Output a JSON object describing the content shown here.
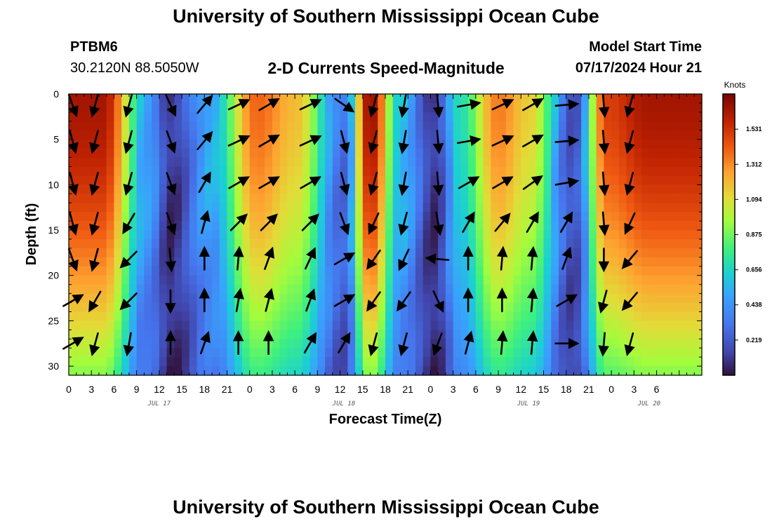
{
  "header": {
    "title": "University of Southern Mississippi Ocean Cube",
    "station": "PTBM6",
    "coords": "30.2120N  88.5050W",
    "plot_title": "2-D Currents Speed-Magnitude",
    "model_label": "Model Start Time",
    "model_time": "07/17/2024 Hour 21"
  },
  "footer": {
    "title": "University of Southern Mississippi Ocean Cube"
  },
  "chart_data": {
    "type": "heatmap",
    "title": "2-D Currents Speed-Magnitude",
    "xlabel": "Forecast Time(Z)",
    "ylabel": "Depth (ft)",
    "x_hours": [
      0,
      84
    ],
    "y_range": [
      0,
      31
    ],
    "x_tick_labels": [
      "0",
      "3",
      "6",
      "9",
      "12",
      "15",
      "18",
      "21",
      "0",
      "3",
      "6",
      "9",
      "12",
      "15",
      "18",
      "21",
      "0",
      "3",
      "6",
      "9",
      "12",
      "15",
      "18",
      "21",
      "0",
      "3",
      "6"
    ],
    "x_tick_hours": [
      0,
      3,
      6,
      9,
      12,
      15,
      18,
      21,
      24,
      27,
      30,
      33,
      36,
      39,
      42,
      45,
      48,
      51,
      54,
      57,
      60,
      63,
      66,
      69,
      72,
      75,
      78
    ],
    "day_labels": [
      {
        "label": "JUL 17",
        "hour": 12
      },
      {
        "label": "JUL 18",
        "hour": 36.5
      },
      {
        "label": "JUL 19",
        "hour": 61
      },
      {
        "label": "JUL 20",
        "hour": 77
      }
    ],
    "y_ticks": [
      0,
      5,
      10,
      15,
      20,
      25,
      30
    ],
    "colorbar": {
      "unit": "Knots",
      "range": [
        0.0,
        1.75
      ],
      "ticks": [
        "0.219",
        "0.438",
        "0.656",
        "0.875",
        "1.094",
        "1.312",
        "1.531"
      ],
      "tick_values": [
        0.219,
        0.438,
        0.656,
        0.875,
        1.094,
        1.312,
        1.531
      ]
    },
    "speed_peaks": [
      {
        "hour": 4.5,
        "speed": 1.65
      },
      {
        "hour": 10.5,
        "speed": 0.5
      },
      {
        "hour": 13.5,
        "speed": 0.1
      },
      {
        "hour": 19,
        "speed": 0.55
      },
      {
        "hour": 25,
        "speed": 1.4
      },
      {
        "hour": 30,
        "speed": 1.2
      },
      {
        "hour": 36.5,
        "speed": 0.3
      },
      {
        "hour": 40,
        "speed": 1.7
      },
      {
        "hour": 44,
        "speed": 0.6
      },
      {
        "hour": 48.5,
        "speed": 0.1
      },
      {
        "hour": 52,
        "speed": 0.7
      },
      {
        "hour": 57,
        "speed": 1.35
      },
      {
        "hour": 61,
        "speed": 1.15
      },
      {
        "hour": 67,
        "speed": 0.2
      },
      {
        "hour": 71.5,
        "speed": 1.5
      },
      {
        "hour": 77,
        "speed": 1.65
      }
    ],
    "arrows": {
      "depths_ft": [
        1.2,
        5.2,
        9.8,
        14.2,
        18.2,
        22.8,
        27.5
      ],
      "columns": [
        {
          "hour": 0.5,
          "dirs": [
            160,
            165,
            165,
            165,
            160,
            60,
            60
          ]
        },
        {
          "hour": 3.5,
          "dirs": [
            195,
            195,
            195,
            195,
            195,
            210,
            195
          ]
        },
        {
          "hour": 8,
          "dirs": [
            195,
            195,
            195,
            210,
            225,
            225,
            190
          ]
        },
        {
          "hour": 13.5,
          "dirs": [
            155,
            160,
            160,
            160,
            175,
            180,
            0
          ]
        },
        {
          "hour": 18,
          "dirs": [
            40,
            40,
            30,
            15,
            0,
            0,
            20
          ]
        },
        {
          "hour": 22.5,
          "dirs": [
            65,
            65,
            60,
            45,
            5,
            10,
            0
          ]
        },
        {
          "hour": 26.5,
          "dirs": [
            60,
            60,
            60,
            45,
            20,
            15,
            0
          ]
        },
        {
          "hour": 32,
          "dirs": [
            65,
            65,
            60,
            45,
            25,
            20,
            30
          ]
        },
        {
          "hour": 36.5,
          "dirs": [
            125,
            165,
            165,
            160,
            60,
            60,
            30
          ]
        },
        {
          "hour": 40.5,
          "dirs": [
            195,
            195,
            195,
            205,
            215,
            215,
            195
          ]
        },
        {
          "hour": 44.5,
          "dirs": [
            190,
            190,
            190,
            195,
            205,
            215,
            195
          ]
        },
        {
          "hour": 49,
          "dirs": [
            175,
            175,
            175,
            170,
            275,
            155,
            200
          ]
        },
        {
          "hour": 53,
          "dirs": [
            80,
            80,
            60,
            30,
            0,
            0,
            15
          ]
        },
        {
          "hour": 57.5,
          "dirs": [
            65,
            65,
            60,
            40,
            5,
            0,
            5
          ]
        },
        {
          "hour": 61.5,
          "dirs": [
            60,
            60,
            55,
            30,
            5,
            5,
            5
          ]
        },
        {
          "hour": 66,
          "dirs": [
            85,
            85,
            80,
            30,
            20,
            60,
            90
          ]
        },
        {
          "hour": 71,
          "dirs": [
            175,
            175,
            175,
            175,
            180,
            195,
            185
          ]
        },
        {
          "hour": 74.5,
          "dirs": [
            195,
            195,
            195,
            205,
            220,
            220,
            195
          ]
        }
      ]
    }
  }
}
